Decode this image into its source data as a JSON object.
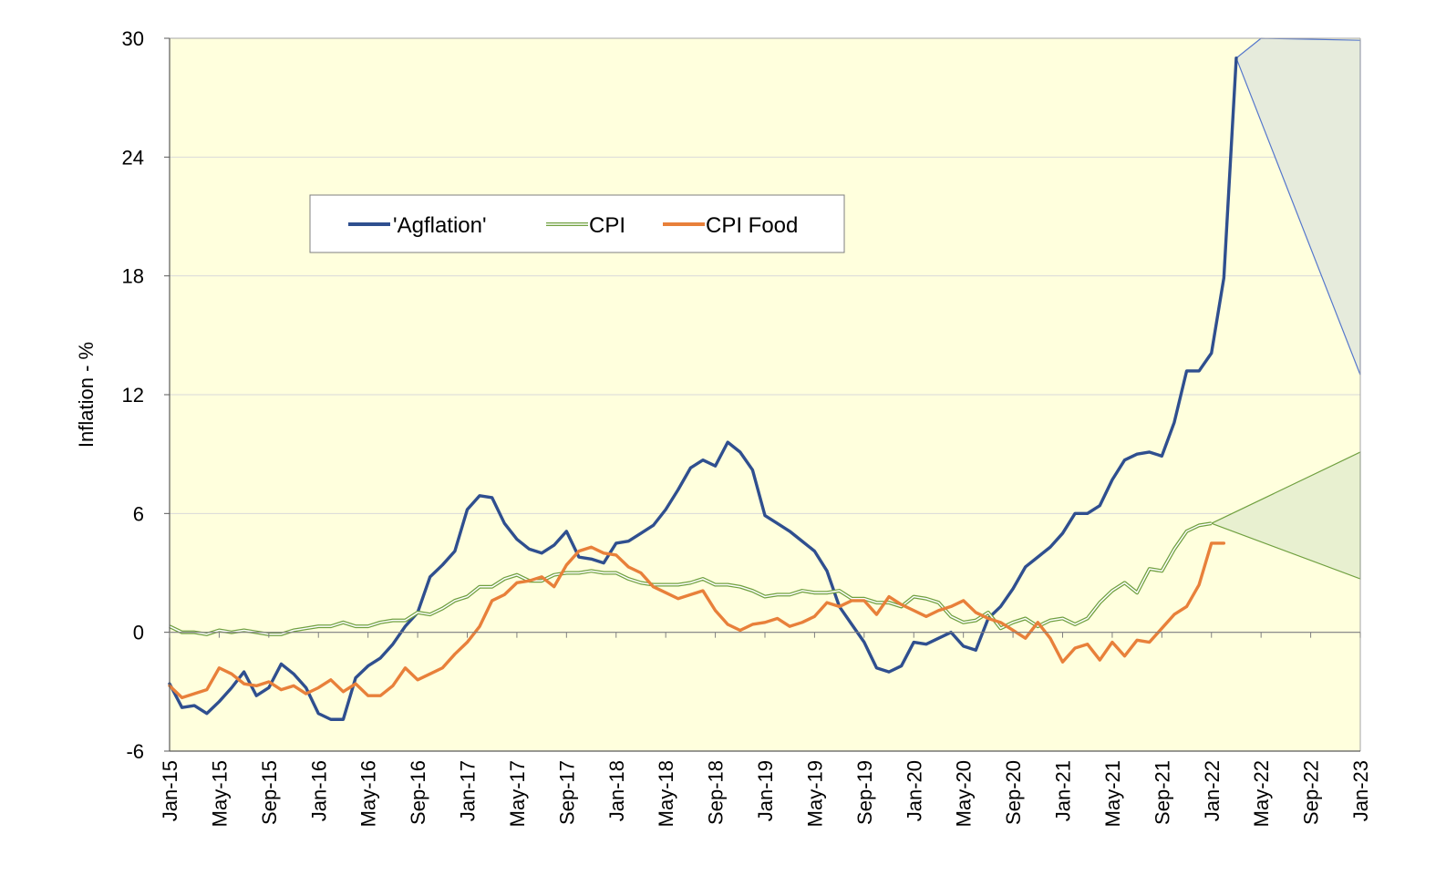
{
  "chart_data": {
    "type": "line",
    "title": "",
    "ylabel": "Inflation - %",
    "xlabel": "",
    "ylim": [
      -6,
      30
    ],
    "y_ticks": [
      -6,
      0,
      6,
      12,
      18,
      24,
      30
    ],
    "x_ticks": [
      "Jan-15",
      "May-15",
      "Sep-15",
      "Jan-16",
      "May-16",
      "Sep-16",
      "Jan-17",
      "May-17",
      "Sep-17",
      "Jan-18",
      "May-18",
      "Sep-18",
      "Jan-19",
      "May-19",
      "Sep-19",
      "Jan-20",
      "May-20",
      "Sep-20",
      "Jan-21",
      "May-21",
      "Sep-21",
      "Jan-22",
      "May-22",
      "Sep-22",
      "Jan-23"
    ],
    "x_range": [
      "Jan-15",
      "Jan-23"
    ],
    "grid": true,
    "legend_position": "upper-left",
    "background_color": "#FFFFDD",
    "series": [
      {
        "name": "'Agflation'",
        "color": "#2F4F8F",
        "start": "Jan-15",
        "values": [
          -2.6,
          -3.8,
          -3.7,
          -4.1,
          -3.5,
          -2.8,
          -2.0,
          -3.2,
          -2.8,
          -1.6,
          -2.1,
          -2.8,
          -4.1,
          -4.4,
          -4.4,
          -2.3,
          -1.7,
          -1.3,
          -0.6,
          0.3,
          1.0,
          2.8,
          3.4,
          4.1,
          6.2,
          6.9,
          6.8,
          5.5,
          4.7,
          4.2,
          4.0,
          4.4,
          5.1,
          3.8,
          3.7,
          3.5,
          4.5,
          4.6,
          5.0,
          5.4,
          6.2,
          7.2,
          8.3,
          8.7,
          8.4,
          9.6,
          9.1,
          8.2,
          5.9,
          5.5,
          5.1,
          4.6,
          4.1,
          3.1,
          1.3,
          0.4,
          -0.5,
          -1.8,
          -2.0,
          -1.7,
          -0.5,
          -0.6,
          -0.3,
          0.0,
          -0.7,
          -0.9,
          0.7,
          1.3,
          2.2,
          3.3,
          3.8,
          4.3,
          5.0,
          6.0,
          6.0,
          6.4,
          7.7,
          8.7,
          9.0,
          9.1,
          8.9,
          10.6,
          13.2,
          13.2,
          14.1,
          17.9,
          29.0
        ]
      },
      {
        "name": "CPI",
        "color": "#70A040",
        "start": "Jan-15",
        "values": [
          0.3,
          0.0,
          0.0,
          -0.1,
          0.1,
          0.0,
          0.1,
          0.0,
          -0.1,
          -0.1,
          0.1,
          0.2,
          0.3,
          0.3,
          0.5,
          0.3,
          0.3,
          0.5,
          0.6,
          0.6,
          1.0,
          0.9,
          1.2,
          1.6,
          1.8,
          2.3,
          2.3,
          2.7,
          2.9,
          2.6,
          2.6,
          2.9,
          3.0,
          3.0,
          3.1,
          3.0,
          3.0,
          2.7,
          2.5,
          2.4,
          2.4,
          2.4,
          2.5,
          2.7,
          2.4,
          2.4,
          2.3,
          2.1,
          1.8,
          1.9,
          1.9,
          2.1,
          2.0,
          2.0,
          2.1,
          1.7,
          1.7,
          1.5,
          1.5,
          1.3,
          1.8,
          1.7,
          1.5,
          0.8,
          0.5,
          0.6,
          1.0,
          0.2,
          0.5,
          0.7,
          0.3,
          0.6,
          0.7,
          0.4,
          0.7,
          1.5,
          2.1,
          2.5,
          2.0,
          3.2,
          3.1,
          4.2,
          5.1,
          5.4,
          5.5
        ]
      },
      {
        "name": "CPI Food",
        "color": "#E8803A",
        "start": "Jan-15",
        "values": [
          -2.7,
          -3.3,
          -3.1,
          -2.9,
          -1.8,
          -2.1,
          -2.6,
          -2.7,
          -2.5,
          -2.9,
          -2.7,
          -3.1,
          -2.8,
          -2.4,
          -3.0,
          -2.6,
          -3.2,
          -3.2,
          -2.7,
          -1.8,
          -2.4,
          -2.1,
          -1.8,
          -1.1,
          -0.5,
          0.3,
          1.6,
          1.9,
          2.5,
          2.6,
          2.8,
          2.3,
          3.4,
          4.1,
          4.3,
          4.0,
          3.9,
          3.3,
          3.0,
          2.3,
          2.0,
          1.7,
          1.9,
          2.1,
          1.1,
          0.4,
          0.1,
          0.4,
          0.5,
          0.7,
          0.3,
          0.5,
          0.8,
          1.5,
          1.3,
          1.6,
          1.6,
          0.9,
          1.8,
          1.4,
          1.1,
          0.8,
          1.1,
          1.3,
          1.6,
          1.0,
          0.7,
          0.5,
          0.1,
          -0.3,
          0.5,
          -0.3,
          -1.5,
          -0.8,
          -0.6,
          -1.4,
          -0.5,
          -1.2,
          -0.4,
          -0.5,
          0.2,
          0.9,
          1.3,
          2.4,
          4.5,
          4.5
        ]
      }
    ],
    "projections": [
      {
        "name": "Agflation projection",
        "fill": "#E6EBDC",
        "stroke": "#5577CC",
        "origin": {
          "x": "Mar-22",
          "y": 29.0
        },
        "upper": [
          {
            "x": "May-22",
            "y": 30.0
          },
          {
            "x": "Jan-23",
            "y": 29.9
          }
        ],
        "lower": [
          {
            "x": "Jan-23",
            "y": 13.0
          }
        ]
      },
      {
        "name": "CPI projection",
        "fill": "#E8F0D0",
        "stroke": "#70A040",
        "origin": {
          "x": "Jan-22",
          "y": 5.5
        },
        "upper": [
          {
            "x": "Jan-23",
            "y": 9.1
          }
        ],
        "lower": [
          {
            "x": "Jan-23",
            "y": 2.7
          }
        ]
      }
    ]
  }
}
